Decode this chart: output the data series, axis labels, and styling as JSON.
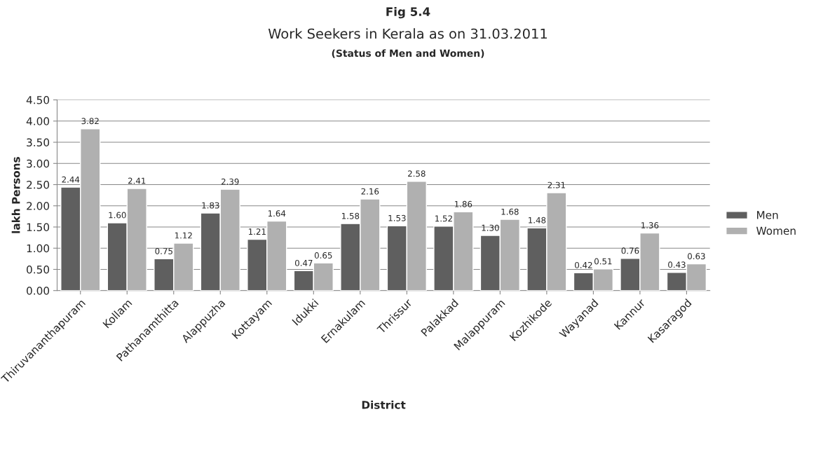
{
  "chart_data": {
    "type": "bar",
    "title": "Work Seekers in Kerala as on 31.03.2011",
    "subtitle": "(Status of Men and Women)",
    "xlabel": "District",
    "ylabel": "lakh Persons",
    "annotations": [
      "Fig 5.4"
    ],
    "categories": [
      "Thiruvananthapuram",
      "Kollam",
      "Pathanamthitta",
      "Alappuzha",
      "Kottayam",
      "Idukki",
      "Ernakulam",
      "Thrissur",
      "Palakkad",
      "Malappuram",
      "Kozhikode",
      "Wayanad",
      "Kannur",
      "Kasaragod"
    ],
    "series": [
      {
        "name": "Men",
        "color": "#5f5f5f",
        "values": [
          2.44,
          1.6,
          0.75,
          1.83,
          1.21,
          0.47,
          1.58,
          1.53,
          1.52,
          1.3,
          1.48,
          0.42,
          0.76,
          0.43
        ],
        "value_labels": [
          "2.44",
          "1.60",
          "0.75",
          "1.83",
          "1.21",
          "0.47",
          "1.58",
          "1.53",
          "1.52",
          "1.30",
          "1.48",
          "0.42",
          "0.76",
          "0.43"
        ]
      },
      {
        "name": "Women",
        "color": "#b0b0b0",
        "values": [
          3.82,
          2.41,
          1.12,
          2.39,
          1.64,
          0.65,
          2.16,
          2.58,
          1.86,
          1.68,
          2.31,
          0.51,
          1.36,
          0.63
        ],
        "value_labels": [
          "3.82",
          "2.41",
          "1.12",
          "2.39",
          "1.64",
          "0.65",
          "2.16",
          "2.58",
          "1.86",
          "1.68",
          "2.31",
          "0.51",
          "1.36",
          "0.63"
        ]
      }
    ],
    "ylim": [
      0,
      4.5
    ],
    "yticks": [
      {
        "value": 0,
        "label": "0.00"
      },
      {
        "value": 0.5,
        "label": "0.50"
      },
      {
        "value": 1,
        "label": "1.00"
      },
      {
        "value": 1.5,
        "label": "1.50"
      },
      {
        "value": 2,
        "label": "2.00"
      },
      {
        "value": 2.5,
        "label": "2.50"
      },
      {
        "value": 3,
        "label": "3.00"
      },
      {
        "value": 3.5,
        "label": "3.50"
      },
      {
        "value": 4,
        "label": "4.00"
      },
      {
        "value": 4.5,
        "label": "4.50"
      }
    ],
    "grid": "y",
    "legend": "right"
  }
}
